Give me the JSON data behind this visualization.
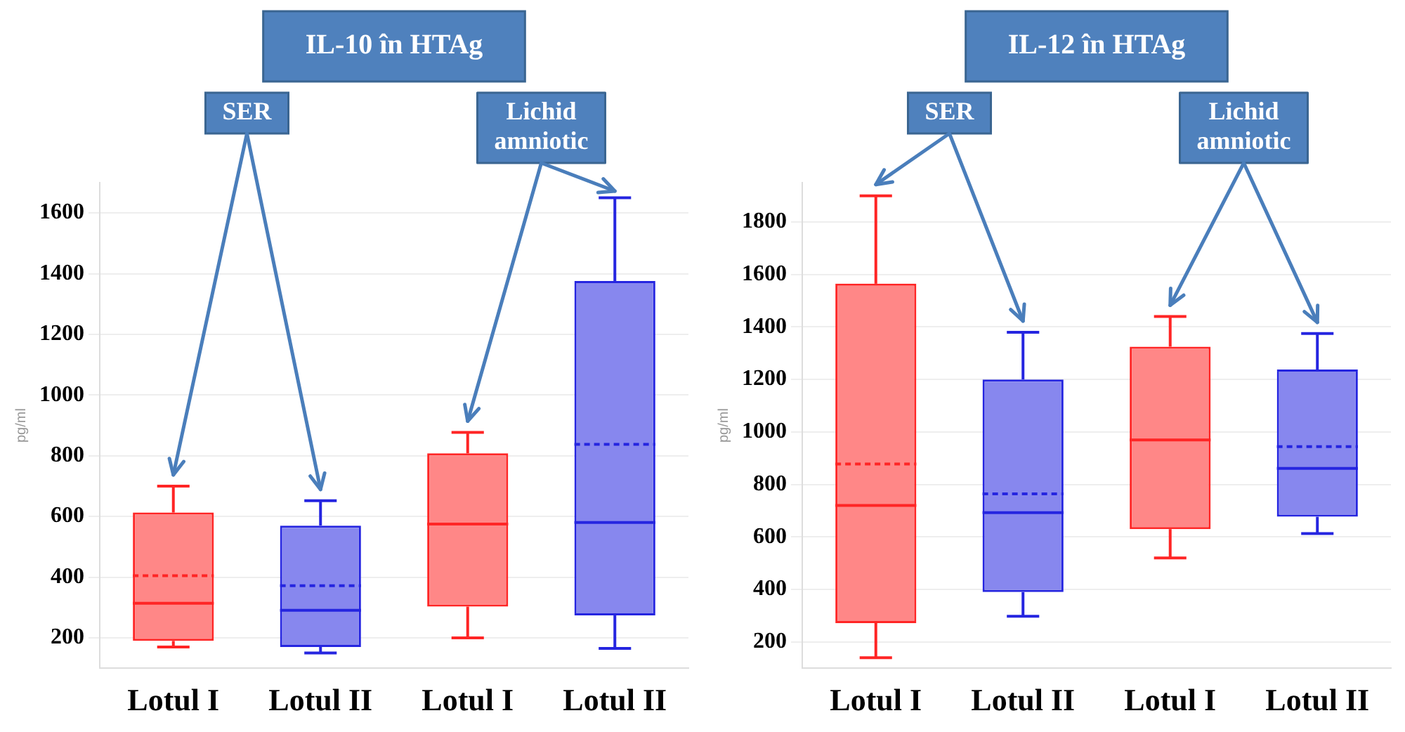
{
  "chart_data": [
    {
      "type": "box",
      "title": "IL-10 în HTAg",
      "ylabel": "pg/ml",
      "categories": [
        "Lotul I",
        "Lotul II",
        "Lotul I",
        "Lotul II"
      ],
      "colors": [
        "#ff2525",
        "#2525e0",
        "#ff2525",
        "#2525e0"
      ],
      "boxes": [
        {
          "low": 170,
          "q1": 190,
          "median": 314,
          "q3": 613,
          "high": 700,
          "mean": 405
        },
        {
          "low": 150,
          "q1": 170,
          "median": 291,
          "q3": 570,
          "high": 652,
          "mean": 372
        },
        {
          "low": 200,
          "q1": 303,
          "median": 575,
          "q3": 808,
          "high": 877
        },
        {
          "low": 165,
          "q1": 274,
          "median": 580,
          "q3": 1376,
          "high": 1650,
          "mean": 838
        }
      ],
      "annotations": [
        "SER",
        "Lichid amniotic"
      ],
      "ylim": [
        100,
        1700
      ],
      "yticks": [
        200,
        400,
        600,
        800,
        1000,
        1200,
        1400,
        1600
      ],
      "grid": "y"
    },
    {
      "type": "box",
      "title": "IL-12 în HTAg",
      "ylabel": "pg/ml",
      "categories": [
        "Lotul I",
        "Lotul II",
        "Lotul I",
        "Lotul II"
      ],
      "colors": [
        "#ff2525",
        "#2525e0",
        "#ff2525",
        "#2525e0"
      ],
      "boxes": [
        {
          "low": 140,
          "q1": 272,
          "median": 720,
          "q3": 1565,
          "high": 1900,
          "mean": 878
        },
        {
          "low": 298,
          "q1": 390,
          "median": 693,
          "q3": 1200,
          "high": 1380,
          "mean": 764
        },
        {
          "low": 520,
          "q1": 630,
          "median": 970,
          "q3": 1325,
          "high": 1440
        },
        {
          "low": 613,
          "q1": 677,
          "median": 861,
          "q3": 1238,
          "high": 1375,
          "mean": 944
        }
      ],
      "annotations": [
        "SER",
        "Lichid amniotic"
      ],
      "ylim": [
        100,
        1950
      ],
      "yticks": [
        200,
        400,
        600,
        800,
        1000,
        1200,
        1400,
        1600,
        1800
      ],
      "grid": "y"
    }
  ]
}
